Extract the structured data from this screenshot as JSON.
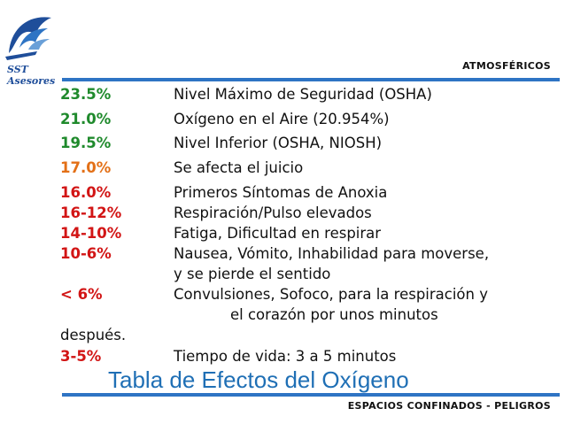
{
  "logo": {
    "line1": "SST",
    "line2": "Asesores"
  },
  "header": {
    "category": "ATMOSFÉRICOS"
  },
  "rows": [
    {
      "pct": "23.5%",
      "desc": "Nivel Máximo de Seguridad (OSHA)",
      "color": "#1f8a2c"
    },
    {
      "pct": "21.0%",
      "desc": "Oxígeno en el Aire (20.954%)",
      "color": "#1f8a2c"
    },
    {
      "pct": "19.5%",
      "desc": "Nivel Inferior (OSHA, NIOSH)",
      "color": "#1f8a2c"
    },
    {
      "pct": "17.0%",
      "desc": "Se afecta el juicio",
      "color": "#e37017"
    },
    {
      "pct": "16.0%",
      "desc": "Primeros Síntomas de Anoxia",
      "color": "#d21515"
    },
    {
      "pct": "16-12%",
      "desc": "Respiración/Pulso elevados",
      "color": "#d21515"
    },
    {
      "pct": "14-10%",
      "desc": "Fatiga, Dificultad en respirar",
      "color": "#d21515"
    },
    {
      "pct": "10-6%",
      "desc": "Nausea, Vómito, Inhabilidad para moverse,",
      "desc2": "y se pierde el sentido",
      "color": "#d21515"
    },
    {
      "pct": "< 6%",
      "desc": "Convulsiones, Sofoco, para la respiración y",
      "desc2": "el corazón por unos minutos",
      "desc3": "después.",
      "color": "#d21515"
    },
    {
      "pct": "3-5%",
      "desc": "Tiempo de vida: 3 a 5 minutos",
      "color": "#d21515"
    }
  ],
  "title": "Tabla de Efectos del Oxígeno",
  "footer": {
    "text": "ESPACIOS CONFINADOS - PELIGROS"
  },
  "colors": {
    "accent": "#2e74c4",
    "title": "#1f6fb5"
  }
}
